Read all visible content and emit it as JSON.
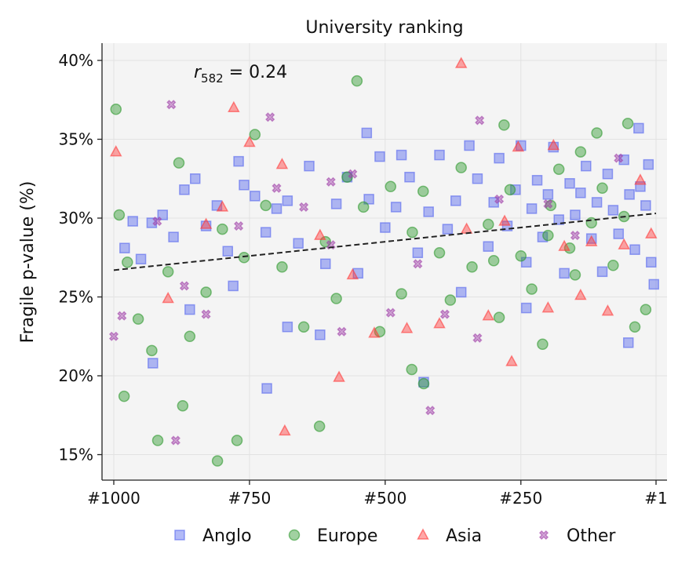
{
  "chart_data": {
    "type": "scatter",
    "title": "University ranking",
    "xlabel": "",
    "ylabel": "Fragile p-value (%)",
    "x_reversed": true,
    "xlim": [
      1020,
      -20
    ],
    "ylim": [
      13.4,
      41.2
    ],
    "xticks": [
      {
        "value": 1000,
        "label": "#1000"
      },
      {
        "value": 750,
        "label": "#750"
      },
      {
        "value": 500,
        "label": "#500"
      },
      {
        "value": 250,
        "label": "#250"
      },
      {
        "value": 1,
        "label": "#1"
      }
    ],
    "yticks": [
      {
        "value": 15,
        "label": "15%"
      },
      {
        "value": 20,
        "label": "20%"
      },
      {
        "value": 25,
        "label": "25%"
      },
      {
        "value": 30,
        "label": "30%"
      },
      {
        "value": 35,
        "label": "35%"
      },
      {
        "value": 40,
        "label": "40%"
      }
    ],
    "grid": true,
    "legend_position": "bottom",
    "annotation": {
      "var": "r",
      "sub": "582",
      "text": " = 0.24"
    },
    "trendline": {
      "x": [
        1000,
        1
      ],
      "y": [
        26.7,
        30.3
      ],
      "style": "dashed",
      "color": "#222222"
    },
    "series": [
      {
        "name": "Anglo",
        "marker": "square",
        "color": "#5566ee",
        "points": [
          [
            980,
            28.1
          ],
          [
            965,
            29.8
          ],
          [
            950,
            27.4
          ],
          [
            930,
            29.7
          ],
          [
            910,
            30.2
          ],
          [
            890,
            28.8
          ],
          [
            870,
            31.8
          ],
          [
            850,
            32.5
          ],
          [
            830,
            29.5
          ],
          [
            810,
            30.8
          ],
          [
            790,
            27.9
          ],
          [
            770,
            33.6
          ],
          [
            760,
            32.1
          ],
          [
            740,
            31.4
          ],
          [
            720,
            29.1
          ],
          [
            700,
            30.6
          ],
          [
            680,
            31.1
          ],
          [
            660,
            28.4
          ],
          [
            640,
            33.3
          ],
          [
            620,
            22.6
          ],
          [
            610,
            27.1
          ],
          [
            590,
            30.9
          ],
          [
            570,
            32.6
          ],
          [
            550,
            26.5
          ],
          [
            530,
            31.2
          ],
          [
            510,
            33.9
          ],
          [
            500,
            29.4
          ],
          [
            480,
            30.7
          ],
          [
            470,
            34.0
          ],
          [
            455,
            32.6
          ],
          [
            440,
            27.8
          ],
          [
            420,
            30.4
          ],
          [
            400,
            34.0
          ],
          [
            385,
            29.3
          ],
          [
            370,
            31.1
          ],
          [
            360,
            25.3
          ],
          [
            345,
            34.6
          ],
          [
            330,
            32.5
          ],
          [
            310,
            28.2
          ],
          [
            300,
            31.0
          ],
          [
            290,
            33.8
          ],
          [
            275,
            29.5
          ],
          [
            260,
            31.8
          ],
          [
            250,
            34.6
          ],
          [
            240,
            27.2
          ],
          [
            230,
            30.6
          ],
          [
            220,
            32.4
          ],
          [
            210,
            28.8
          ],
          [
            200,
            31.5
          ],
          [
            190,
            34.5
          ],
          [
            180,
            29.9
          ],
          [
            170,
            26.5
          ],
          [
            160,
            32.2
          ],
          [
            150,
            30.2
          ],
          [
            140,
            31.6
          ],
          [
            130,
            33.3
          ],
          [
            120,
            28.7
          ],
          [
            110,
            31.0
          ],
          [
            100,
            26.6
          ],
          [
            90,
            32.8
          ],
          [
            80,
            30.5
          ],
          [
            70,
            29.0
          ],
          [
            60,
            33.7
          ],
          [
            50,
            31.5
          ],
          [
            40,
            28.0
          ],
          [
            30,
            32.0
          ],
          [
            20,
            30.8
          ],
          [
            10,
            27.2
          ],
          [
            5,
            25.8
          ],
          [
            15,
            33.4
          ],
          [
            534,
            35.4
          ],
          [
            718,
            19.2
          ],
          [
            928,
            20.8
          ],
          [
            429,
            19.6
          ],
          [
            52,
            22.1
          ],
          [
            33,
            35.7
          ],
          [
            780,
            25.7
          ],
          [
            860,
            24.2
          ],
          [
            680,
            23.1
          ],
          [
            240,
            24.3
          ]
        ]
      },
      {
        "name": "Europe",
        "marker": "circle",
        "color": "#2e9a2e",
        "points": [
          [
            996,
            36.9
          ],
          [
            552,
            38.7
          ],
          [
            809,
            14.6
          ],
          [
            773,
            15.9
          ],
          [
            981,
            18.7
          ],
          [
            873,
            18.1
          ],
          [
            621,
            16.8
          ],
          [
            919,
            15.9
          ],
          [
            451,
            20.4
          ],
          [
            429,
            19.5
          ],
          [
            53,
            36.0
          ],
          [
            281,
            35.9
          ],
          [
            990,
            30.2
          ],
          [
            975,
            27.2
          ],
          [
            955,
            23.6
          ],
          [
            930,
            21.6
          ],
          [
            900,
            26.6
          ],
          [
            880,
            33.5
          ],
          [
            860,
            22.5
          ],
          [
            830,
            25.3
          ],
          [
            800,
            29.3
          ],
          [
            760,
            27.5
          ],
          [
            740,
            35.3
          ],
          [
            720,
            30.8
          ],
          [
            690,
            26.9
          ],
          [
            650,
            23.1
          ],
          [
            610,
            28.5
          ],
          [
            590,
            24.9
          ],
          [
            570,
            32.6
          ],
          [
            540,
            30.7
          ],
          [
            510,
            22.8
          ],
          [
            490,
            32.0
          ],
          [
            470,
            25.2
          ],
          [
            450,
            29.1
          ],
          [
            430,
            31.7
          ],
          [
            400,
            27.8
          ],
          [
            380,
            24.8
          ],
          [
            360,
            33.2
          ],
          [
            340,
            26.9
          ],
          [
            310,
            29.6
          ],
          [
            290,
            23.7
          ],
          [
            270,
            31.8
          ],
          [
            250,
            27.6
          ],
          [
            230,
            25.5
          ],
          [
            210,
            22.0
          ],
          [
            195,
            30.8
          ],
          [
            180,
            33.1
          ],
          [
            160,
            28.1
          ],
          [
            140,
            34.2
          ],
          [
            120,
            29.7
          ],
          [
            100,
            31.9
          ],
          [
            80,
            27.0
          ],
          [
            60,
            30.1
          ],
          [
            40,
            23.1
          ],
          [
            20,
            24.2
          ],
          [
            300,
            27.3
          ],
          [
            200,
            28.9
          ],
          [
            150,
            26.4
          ],
          [
            110,
            35.4
          ]
        ]
      },
      {
        "name": "Asia",
        "marker": "triangle",
        "color": "#ff3b3b",
        "points": [
          [
            360,
            39.8
          ],
          [
            779,
            37.0
          ],
          [
            996,
            34.2
          ],
          [
            585,
            19.9
          ],
          [
            685,
            16.5
          ],
          [
            267,
            20.9
          ],
          [
            900,
            24.9
          ],
          [
            830,
            29.6
          ],
          [
            750,
            34.8
          ],
          [
            690,
            33.4
          ],
          [
            620,
            28.9
          ],
          [
            560,
            26.4
          ],
          [
            520,
            22.7
          ],
          [
            460,
            23.0
          ],
          [
            400,
            23.3
          ],
          [
            350,
            29.3
          ],
          [
            310,
            23.8
          ],
          [
            280,
            29.8
          ],
          [
            255,
            34.5
          ],
          [
            200,
            24.3
          ],
          [
            170,
            28.2
          ],
          [
            140,
            25.1
          ],
          [
            90,
            24.1
          ],
          [
            60,
            28.3
          ],
          [
            30,
            32.4
          ],
          [
            10,
            29.0
          ],
          [
            190,
            34.6
          ],
          [
            800,
            30.7
          ],
          [
            120,
            28.5
          ]
        ]
      },
      {
        "name": "Other",
        "marker": "x",
        "color": "#a040a8",
        "points": [
          [
            894,
            37.2
          ],
          [
            712,
            36.4
          ],
          [
            326,
            36.2
          ],
          [
            417,
            17.8
          ],
          [
            886,
            15.9
          ],
          [
            1000,
            22.5
          ],
          [
            985,
            23.8
          ],
          [
            920,
            29.8
          ],
          [
            870,
            25.7
          ],
          [
            830,
            23.9
          ],
          [
            770,
            29.5
          ],
          [
            700,
            31.9
          ],
          [
            650,
            30.7
          ],
          [
            600,
            28.3
          ],
          [
            580,
            22.8
          ],
          [
            560,
            32.8
          ],
          [
            490,
            24.0
          ],
          [
            440,
            27.1
          ],
          [
            390,
            23.9
          ],
          [
            330,
            22.4
          ],
          [
            290,
            31.2
          ],
          [
            200,
            30.9
          ],
          [
            150,
            28.9
          ],
          [
            70,
            33.8
          ],
          [
            600,
            32.3
          ]
        ]
      }
    ]
  }
}
